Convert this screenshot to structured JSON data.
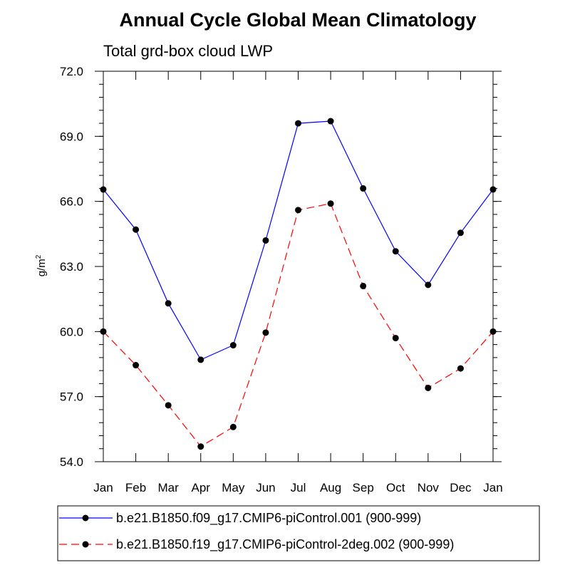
{
  "chart_data": {
    "type": "line",
    "title": "Annual Cycle Global Mean Climatology",
    "subtitle": "Total grd-box cloud LWP",
    "ylabel": {
      "base": "g/m",
      "sup": "2"
    },
    "categories": [
      "Jan",
      "Feb",
      "Mar",
      "Apr",
      "May",
      "Jun",
      "Jul",
      "Aug",
      "Sep",
      "Oct",
      "Nov",
      "Dec",
      "Jan"
    ],
    "ylim": [
      54.0,
      72.0
    ],
    "yticks": [
      "54.0",
      "57.0",
      "60.0",
      "63.0",
      "66.0",
      "69.0",
      "72.0"
    ],
    "yminor_step": 0.6,
    "grid": false,
    "legend_position": "bottom",
    "series": [
      {
        "name": "b.e21.B1850.f09_g17.CMIP6-piControl.001 (900-999)",
        "color": "#0000ff",
        "dash": "solid",
        "marker": "filled-circle",
        "values": [
          66.55,
          64.7,
          61.3,
          58.7,
          59.37,
          64.2,
          69.6,
          69.7,
          66.6,
          63.7,
          62.15,
          64.55,
          66.55
        ]
      },
      {
        "name": "b.e21.B1850.f19_g17.CMIP6-piControl-2deg.002 (900-999)",
        "color": "#ff0000",
        "dash": "dashed",
        "marker": "filled-circle",
        "values": [
          60.0,
          58.45,
          56.6,
          54.7,
          55.6,
          59.95,
          65.6,
          65.9,
          62.1,
          59.7,
          57.4,
          58.3,
          60.0
        ]
      }
    ]
  }
}
